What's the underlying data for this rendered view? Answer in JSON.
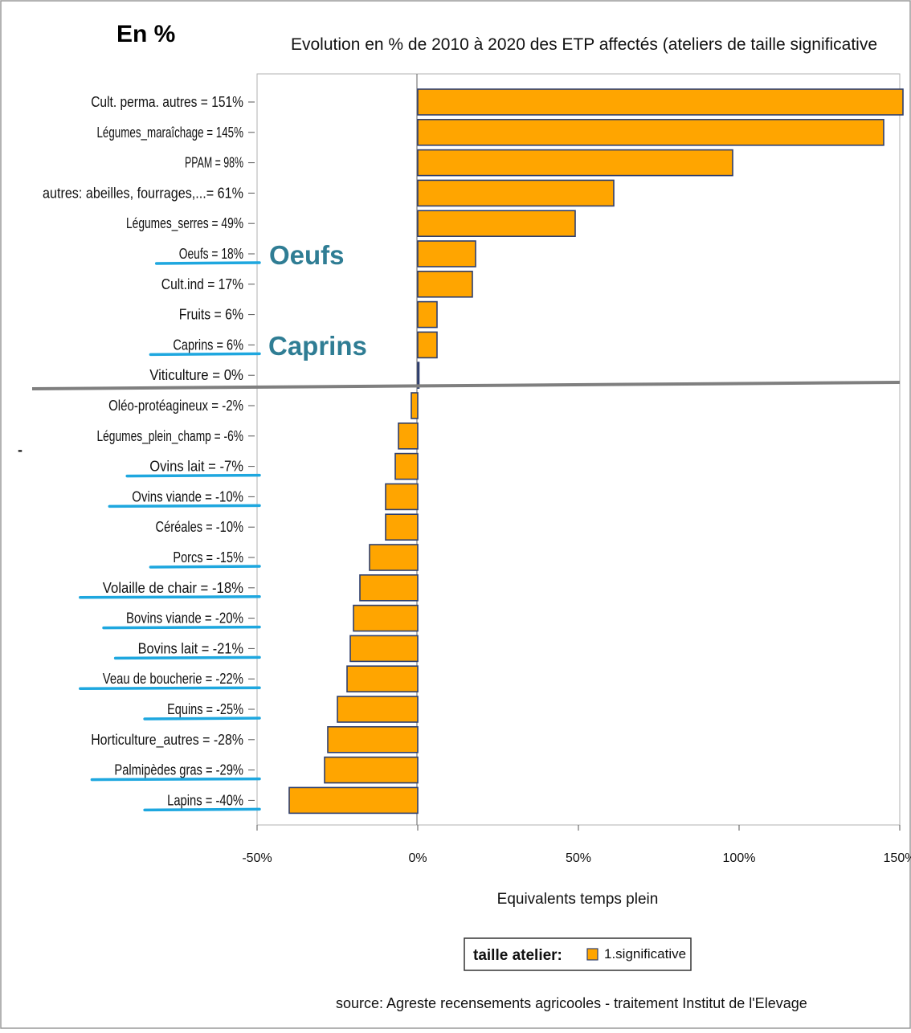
{
  "corner_label": "En %",
  "annotations": [
    "Oeufs",
    "Caprins"
  ],
  "stray_mark": "-",
  "chart_data": {
    "type": "bar",
    "orientation": "horizontal",
    "title": "Evolution en % de 2010 à 2020 des ETP affectés (ateliers de taille significative",
    "xlabel": "Equivalents temps plein",
    "ylabel": "",
    "xlim": [
      -50,
      150
    ],
    "x_ticks": [
      "-50%",
      "0%",
      "50%",
      "100%",
      "150%"
    ],
    "x_tick_values": [
      -50,
      0,
      50,
      100,
      150
    ],
    "categories": [
      "Cult. perma. autres = 151%",
      "Légumes_maraîchage = 145%",
      "PPAM = 98%",
      "autres: abeilles, fourrages,...= 61%",
      "Légumes_serres = 49%",
      "Oeufs = 18%",
      "Cult.ind = 17%",
      "Fruits = 6%",
      "Caprins = 6%",
      "Viticulture = 0%",
      "Oléo-protéagineux = -2%",
      "Légumes_plein_champ = -6%",
      "Ovins lait = -7%",
      "Ovins viande = -10%",
      "Céréales = -10%",
      "Porcs = -15%",
      "Volaille de chair = -18%",
      "Bovins viande = -20%",
      "Bovins lait = -21%",
      "Veau de boucherie = -22%",
      "Equins = -25%",
      "Horticulture_autres = -28%",
      "Palmipèdes gras = -29%",
      "Lapins = -40%"
    ],
    "values": [
      151,
      145,
      98,
      61,
      49,
      18,
      17,
      6,
      6,
      0,
      -2,
      -6,
      -7,
      -10,
      -10,
      -15,
      -18,
      -20,
      -21,
      -22,
      -25,
      -28,
      -29,
      -40
    ],
    "underlined": [
      false,
      false,
      false,
      false,
      false,
      true,
      false,
      false,
      true,
      false,
      false,
      false,
      true,
      true,
      false,
      true,
      true,
      true,
      true,
      true,
      true,
      false,
      true,
      true
    ],
    "legend": {
      "title": "taille atelier:",
      "entries": [
        "1.significative"
      ],
      "position": "bottom"
    },
    "source": "source: Agreste recensements agricooles - traitement Institut de l'Elevage",
    "colors": {
      "bar_fill": "#FFA500",
      "bar_stroke": "#2f3f6e",
      "underline": "#1ea7df",
      "annotation": "#2f7d94",
      "divider": "#7f7f7f"
    }
  }
}
